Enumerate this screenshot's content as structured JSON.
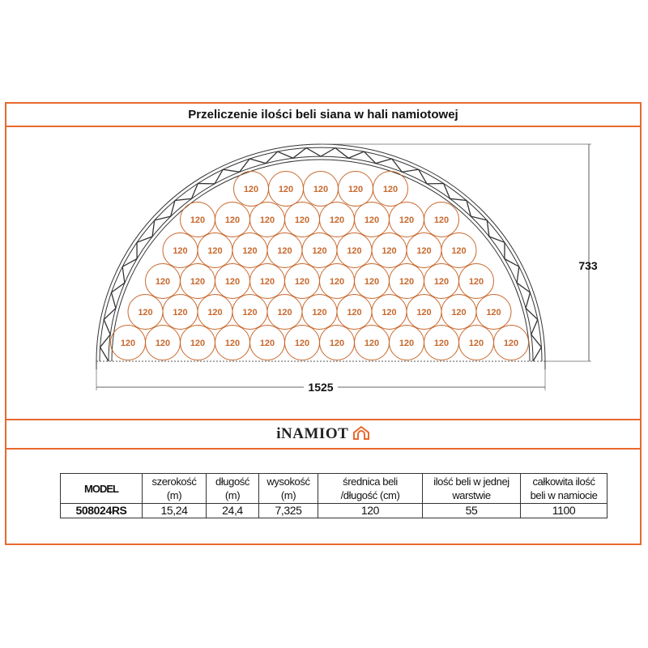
{
  "title": "Przeliczenie ilości beli siana w hali namiotowej",
  "diagram": {
    "bale_label": "120",
    "rows": [
      12,
      11,
      10,
      9,
      8,
      5
    ],
    "height_label": "733",
    "width_label": "1525",
    "bale_color": "#c8692e",
    "frame_color": "#e8692e"
  },
  "logo": {
    "text": "iNAMIOT"
  },
  "table": {
    "headers": [
      [
        "MODEL"
      ],
      [
        "szerokość",
        "(m)"
      ],
      [
        "długość",
        "(m)"
      ],
      [
        "wysokość",
        "(m)"
      ],
      [
        "średnica beli",
        "/długość (cm)"
      ],
      [
        "ilość beli w jednej",
        "warstwie"
      ],
      [
        "całkowita ilość",
        "beli w namiocie"
      ]
    ],
    "row": [
      "508024RS",
      "15,24",
      "24,4",
      "7,325",
      "120",
      "55",
      "1100"
    ]
  }
}
